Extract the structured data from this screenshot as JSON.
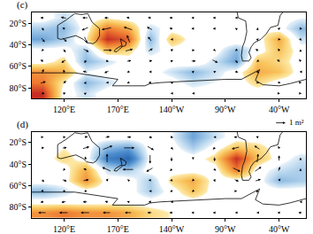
{
  "chart_data": [
    {
      "type": "map",
      "title": "(c)",
      "x": [
        100,
        120,
        140,
        160,
        180,
        200,
        220,
        240,
        260,
        280,
        300,
        320,
        340
      ],
      "y": [
        -85,
        -75,
        -65,
        -55,
        -45,
        -35,
        -25,
        -15
      ],
      "xlim": [
        90,
        345
      ],
      "ylim": [
        -90,
        -10
      ],
      "xticks": [
        {
          "value": 120,
          "label": "120°E"
        },
        {
          "value": 170,
          "label": "170°E"
        },
        {
          "value": 220,
          "label": "140°W"
        },
        {
          "value": 270,
          "label": "90°W"
        },
        {
          "value": 320,
          "label": "40°W"
        }
      ],
      "yticks": [
        {
          "value": -20,
          "label": "20°S"
        },
        {
          "value": -40,
          "label": "40°S"
        },
        {
          "value": -60,
          "label": "60°S"
        },
        {
          "value": -80,
          "label": "80°S"
        }
      ],
      "zlim": [
        -1,
        1
      ],
      "values": [
        [
          0.9,
          0,
          -0.2,
          0,
          0,
          0,
          0,
          0,
          0,
          0,
          0,
          0,
          0
        ],
        [
          0.6,
          0.1,
          -0.4,
          -0.2,
          0,
          0,
          0,
          -0.2,
          -0.1,
          0,
          0.2,
          0,
          0
        ],
        [
          0.5,
          0.4,
          -0.1,
          0,
          0,
          0,
          -0.2,
          -0.4,
          -0.2,
          0,
          0.4,
          0.3,
          0
        ],
        [
          0,
          0.2,
          -0.4,
          -0.2,
          0,
          0,
          0,
          0.1,
          -0.2,
          -0.5,
          0.3,
          0.2,
          0
        ],
        [
          0,
          0,
          -0.3,
          0.3,
          0.2,
          -0.2,
          0,
          0,
          0,
          -0.4,
          0,
          0.3,
          0
        ],
        [
          -0.5,
          -0.3,
          0.1,
          0.9,
          0.7,
          -0.4,
          0.3,
          0,
          0,
          0.1,
          0,
          0.4,
          -0.2
        ],
        [
          -0.3,
          -0.4,
          0,
          0.6,
          0.4,
          -0.2,
          0,
          0,
          0,
          0,
          0.1,
          0,
          -0.4
        ],
        [
          0,
          -0.2,
          0,
          0.1,
          0,
          0,
          0,
          0,
          0,
          0,
          0,
          0,
          -0.1
        ]
      ],
      "u": [
        [
          0.4,
          0.3,
          0.2,
          0.1,
          0,
          -0.1,
          -0.2,
          -0.2,
          -0.1,
          0,
          0.1,
          0.2,
          0.2
        ],
        [
          0.6,
          0.4,
          0.1,
          -0.2,
          -0.3,
          -0.3,
          -0.2,
          -0.1,
          0,
          0.1,
          0.3,
          0.3,
          0.2
        ],
        [
          0.2,
          -0.1,
          -0.5,
          -0.5,
          -0.3,
          -0.2,
          0,
          0.2,
          0.3,
          0.4,
          0.3,
          0,
          -0.2
        ],
        [
          -0.4,
          -0.5,
          -0.2,
          0.3,
          0.5,
          0.4,
          0.3,
          0.5,
          0.6,
          0.3,
          -0.2,
          -0.4,
          -0.3
        ],
        [
          -0.2,
          0.3,
          0.6,
          0.9,
          0.8,
          0.5,
          0.3,
          0.3,
          0.2,
          -0.2,
          -0.4,
          -0.2,
          0
        ],
        [
          0.4,
          0.5,
          0.3,
          0,
          -0.3,
          -0.4,
          -0.2,
          0,
          0,
          0,
          0.2,
          0.3,
          0.2
        ],
        [
          0.2,
          -0.3,
          -0.7,
          -1.0,
          -0.9,
          -0.6,
          -0.4,
          -0.3,
          -0.3,
          -0.2,
          0,
          0.2,
          0.3
        ],
        [
          -0.4,
          -0.6,
          -0.6,
          -0.5,
          -0.4,
          -0.4,
          -0.4,
          -0.3,
          -0.3,
          -0.2,
          -0.1,
          0,
          0.1
        ]
      ],
      "v": [
        [
          0,
          0.1,
          0.1,
          0,
          0,
          0,
          0,
          0,
          0,
          0,
          0,
          0,
          0
        ],
        [
          0.2,
          0.3,
          0.2,
          0,
          -0.1,
          0,
          0.1,
          0.1,
          0,
          -0.1,
          -0.1,
          0,
          0
        ],
        [
          0.5,
          0.4,
          0.1,
          -0.2,
          -0.1,
          0,
          0.1,
          0.2,
          0.1,
          -0.1,
          -0.2,
          -0.1,
          0
        ],
        [
          0.2,
          -0.3,
          -0.4,
          -0.1,
          0.1,
          0.1,
          0.1,
          0,
          -0.3,
          -0.4,
          -0.1,
          0.2,
          0.3
        ],
        [
          -0.2,
          -0.4,
          -0.3,
          0,
          0.2,
          0.3,
          0.2,
          0,
          -0.2,
          -0.1,
          0.2,
          0.3,
          0.2
        ],
        [
          -0.5,
          -0.4,
          -0.7,
          0,
          0.8,
          0.5,
          0,
          -0.1,
          0,
          0.1,
          0.2,
          0,
          -0.2
        ],
        [
          -0.4,
          0.2,
          -0.3,
          -0.2,
          0.3,
          0.3,
          0.1,
          0,
          0,
          0.1,
          0.2,
          0.2,
          0
        ],
        [
          0,
          0.1,
          0,
          0,
          0.1,
          0.1,
          0,
          0,
          0,
          0,
          0.1,
          0.1,
          0
        ]
      ],
      "vector_key": {
        "value": 1,
        "label": "1 m²"
      }
    },
    {
      "type": "map",
      "title": "(d)",
      "x": [
        100,
        120,
        140,
        160,
        180,
        200,
        220,
        240,
        260,
        280,
        300,
        320,
        340
      ],
      "y": [
        -85,
        -75,
        -65,
        -55,
        -45,
        -35,
        -25,
        -15
      ],
      "xlim": [
        90,
        345
      ],
      "ylim": [
        -90,
        -10
      ],
      "xticks": [
        {
          "value": 120,
          "label": "120°E"
        },
        {
          "value": 170,
          "label": "170°E"
        },
        {
          "value": 220,
          "label": "140°W"
        },
        {
          "value": 270,
          "label": "90°W"
        },
        {
          "value": 320,
          "label": "40°W"
        }
      ],
      "yticks": [
        {
          "value": -20,
          "label": "20°S"
        },
        {
          "value": -40,
          "label": "40°S"
        },
        {
          "value": -60,
          "label": "60°S"
        },
        {
          "value": -80,
          "label": "80°S"
        }
      ],
      "zlim": [
        -1,
        1
      ],
      "values": [
        [
          0.5,
          0.6,
          0.5,
          0.5,
          0.4,
          0.2,
          0.1,
          0,
          0,
          0,
          0,
          0,
          0.1
        ],
        [
          0,
          0,
          0,
          0,
          0,
          0,
          0,
          0,
          0,
          0,
          0,
          0,
          0
        ],
        [
          -0.4,
          -0.2,
          0,
          0,
          0,
          -0.3,
          0,
          0.3,
          0,
          0,
          0,
          0,
          0
        ],
        [
          0,
          0,
          0.5,
          0,
          0,
          -0.3,
          0.2,
          0.4,
          0,
          0,
          0,
          -0.4,
          -0.3
        ],
        [
          0,
          0,
          0.4,
          -0.2,
          -0.3,
          0,
          0,
          0,
          0,
          0.6,
          0,
          -0.2,
          -0.3
        ],
        [
          0,
          0.2,
          0,
          -0.7,
          -0.9,
          0,
          0.1,
          0,
          0.2,
          0.9,
          0.3,
          0,
          -0.2
        ],
        [
          0,
          0.1,
          0,
          -0.4,
          -0.5,
          0,
          0,
          -0.3,
          0,
          0.3,
          0.2,
          0,
          0
        ],
        [
          0,
          0,
          0,
          0,
          0,
          0,
          -0.1,
          -0.5,
          -0.2,
          0,
          0,
          0,
          0
        ]
      ],
      "u": [
        [
          -0.8,
          -0.9,
          -0.9,
          -0.8,
          -0.7,
          -0.5,
          -0.4,
          -0.3,
          -0.3,
          -0.2,
          -0.2,
          -0.3,
          -0.4
        ],
        [
          -0.4,
          -0.5,
          -0.5,
          -0.4,
          -0.3,
          -0.3,
          -0.2,
          -0.1,
          0,
          0.1,
          0,
          -0.1,
          -0.2
        ],
        [
          0.2,
          0.3,
          0.3,
          0.1,
          0,
          -0.2,
          -0.3,
          -0.2,
          0,
          0.2,
          0.2,
          0.1,
          0
        ],
        [
          0.3,
          0.5,
          0.6,
          0.2,
          -0.2,
          -0.3,
          -0.3,
          -0.2,
          0.1,
          0.5,
          0.6,
          0.3,
          0.1
        ],
        [
          0,
          -0.2,
          -0.4,
          -0.9,
          -1.1,
          -0.7,
          -0.3,
          0,
          0.3,
          0.8,
          0.7,
          0.2,
          0
        ],
        [
          0.1,
          0,
          -0.1,
          0,
          0.1,
          0,
          0,
          0,
          0,
          0,
          0.1,
          0,
          0
        ],
        [
          0.3,
          0.5,
          0.7,
          1.0,
          1.1,
          0.7,
          0.3,
          0.1,
          -0.3,
          -0.8,
          -0.6,
          -0.2,
          0
        ],
        [
          0.2,
          0.3,
          0.4,
          0.5,
          0.5,
          0.4,
          0.3,
          0.1,
          -0.2,
          -0.4,
          -0.3,
          -0.1,
          0
        ]
      ],
      "v": [
        [
          0,
          0,
          0,
          0,
          0,
          0,
          0,
          0,
          0,
          0,
          0,
          0,
          0
        ],
        [
          -0.1,
          -0.1,
          0,
          0.1,
          0.1,
          0,
          0,
          0,
          0,
          0,
          0,
          0,
          0
        ],
        [
          -0.2,
          -0.1,
          0,
          0.1,
          0.1,
          0,
          -0.1,
          -0.2,
          -0.1,
          0,
          0.1,
          0.1,
          0
        ],
        [
          -0.3,
          -0.2,
          0.1,
          0.3,
          0.2,
          0,
          -0.1,
          -0.2,
          -0.3,
          -0.2,
          0.2,
          0.3,
          0.1
        ],
        [
          -0.1,
          -0.2,
          0.2,
          0.4,
          0,
          -0.4,
          -0.3,
          -0.1,
          -0.2,
          -0.4,
          0.5,
          0.5,
          0.2
        ],
        [
          0,
          0.1,
          0.4,
          0.9,
          0,
          -0.9,
          -0.5,
          -0.2,
          -0.5,
          0,
          0.9,
          0.6,
          0.2
        ],
        [
          0,
          0.1,
          0.2,
          0.4,
          0,
          -0.4,
          -0.3,
          -0.1,
          -0.3,
          -0.2,
          0.4,
          0.3,
          0.1
        ],
        [
          0,
          0,
          0.1,
          0.1,
          0,
          -0.1,
          -0.1,
          0,
          0,
          0,
          0.1,
          0.1,
          0
        ]
      ]
    }
  ],
  "coastlines": [
    [
      [
        114,
        -22
      ],
      [
        114,
        -34
      ],
      [
        117,
        -35
      ],
      [
        124,
        -33
      ],
      [
        131,
        -31.5
      ],
      [
        138,
        -35
      ],
      [
        141,
        -38
      ],
      [
        147,
        -39
      ],
      [
        150,
        -37
      ],
      [
        153,
        -32
      ],
      [
        153,
        -25
      ],
      [
        146,
        -19
      ],
      [
        142,
        -11
      ],
      [
        136,
        -12
      ],
      [
        130,
        -11
      ],
      [
        122,
        -17
      ],
      [
        114,
        -22
      ]
    ],
    [
      [
        172.5,
        -34.5
      ],
      [
        178,
        -38
      ],
      [
        177,
        -41
      ],
      [
        174,
        -41.5
      ],
      [
        172.5,
        -34.5
      ]
    ],
    [
      [
        173,
        -41
      ],
      [
        174,
        -42
      ],
      [
        171,
        -44.5
      ],
      [
        169,
        -46.6
      ],
      [
        166.5,
        -46
      ],
      [
        168,
        -44
      ],
      [
        173,
        -41
      ]
    ],
    [
      [
        281,
        -10
      ],
      [
        282,
        -15
      ],
      [
        289,
        -18
      ],
      [
        290,
        -28
      ],
      [
        288,
        -37
      ],
      [
        286,
        -42
      ],
      [
        285,
        -50
      ],
      [
        286,
        -55
      ],
      [
        292,
        -55
      ],
      [
        294,
        -52
      ],
      [
        292,
        -47
      ],
      [
        294,
        -42
      ],
      [
        297,
        -38
      ],
      [
        303,
        -35
      ],
      [
        308,
        -30
      ],
      [
        312,
        -24
      ],
      [
        319,
        -22
      ],
      [
        321,
        -13
      ],
      [
        325,
        -8
      ]
    ],
    [
      [
        90,
        -66
      ],
      [
        110,
        -66
      ],
      [
        130,
        -66
      ],
      [
        150,
        -69
      ],
      [
        165,
        -71
      ],
      [
        170,
        -72
      ],
      [
        165,
        -78
      ],
      [
        180,
        -78
      ],
      [
        195,
        -78
      ],
      [
        200,
        -76
      ],
      [
        210,
        -75
      ],
      [
        230,
        -74
      ],
      [
        250,
        -73
      ],
      [
        270,
        -72
      ],
      [
        285,
        -72
      ],
      [
        295,
        -67
      ],
      [
        302,
        -63
      ],
      [
        300,
        -68
      ],
      [
        298,
        -73
      ],
      [
        305,
        -77
      ],
      [
        320,
        -78
      ],
      [
        330,
        -76
      ],
      [
        345,
        -72
      ]
    ]
  ]
}
